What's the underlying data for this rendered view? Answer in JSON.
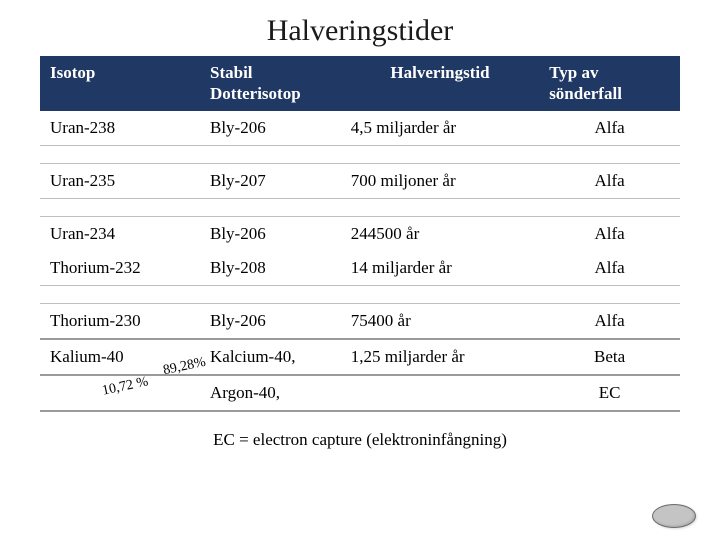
{
  "title": "Halveringstider",
  "header_bg": "#203864",
  "header_fg": "#ffffff",
  "columns": [
    {
      "label": "Isotop",
      "align": "left"
    },
    {
      "label": "Stabil Dotterisotop",
      "align": "left"
    },
    {
      "label": "Halveringstid",
      "align": "center"
    },
    {
      "label": "Typ av sönderfall",
      "align": "left"
    }
  ],
  "rows": [
    {
      "isotop": "Uran-238",
      "dotter": "Bly-206",
      "halv": "4,5 miljarder år",
      "typ": "Alfa",
      "spacer_after": true
    },
    {
      "isotop": "Uran-235",
      "dotter": "Bly-207",
      "halv": "700 miljoner år",
      "typ": "Alfa",
      "spacer_after": true
    },
    {
      "isotop": "Uran-234",
      "dotter": "Bly-206",
      "halv": "244500 år",
      "typ": "Alfa",
      "no_border": true
    },
    {
      "isotop": "Thorium-232",
      "dotter": "Bly-208",
      "halv": "14 miljarder år",
      "typ": "Alfa",
      "spacer_after": true
    },
    {
      "isotop": "Thorium-230",
      "dotter": "Bly-206",
      "halv": "75400 år",
      "typ": "Alfa",
      "thick_border": true
    },
    {
      "isotop": "Kalium-40",
      "dotter": "Kalcium-40,",
      "halv": "1,25 miljarder år",
      "typ": "Beta",
      "annot_isotop": "89,28%",
      "thick_border": true
    },
    {
      "isotop": "",
      "dotter": "Argon-40,",
      "halv": "",
      "typ": "EC",
      "annot_isotop_left": "10,72 %",
      "thick_border": true
    }
  ],
  "footnote": "EC = electron capture (elektroninfångning)"
}
